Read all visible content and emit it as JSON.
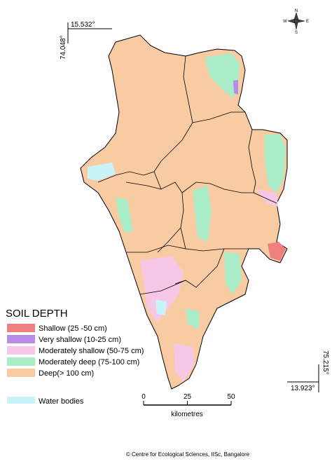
{
  "coordinates": {
    "top_lat": "15.532°",
    "top_lon": "74.048°",
    "bottom_lon": "75.215°",
    "bottom_lat": "13.923°"
  },
  "compass": {
    "north": "N",
    "south": "S",
    "east": "E",
    "west": "W"
  },
  "legend": {
    "title": "SOIL DEPTH",
    "items": [
      {
        "label": "Shallow (25 -50 cm)",
        "color": "#f08080"
      },
      {
        "label": "Very shallow (10-25 cm)",
        "color": "#b48ee8"
      },
      {
        "label": "Moderately shallow (50-75 cm)",
        "color": "#f7c8e6"
      },
      {
        "label": "Moderately deep (75-100 cm)",
        "color": "#a8ecc8"
      },
      {
        "label": "Deep(> 100 cm)",
        "color": "#f9cba3"
      }
    ],
    "water": {
      "label": "Water bodies",
      "color": "#c8f4f8"
    }
  },
  "scale": {
    "ticks": [
      0,
      25,
      50
    ],
    "unit": "kilometres"
  },
  "credit": "© Centre for Ecological Sciences, IISc, Bangalore"
}
